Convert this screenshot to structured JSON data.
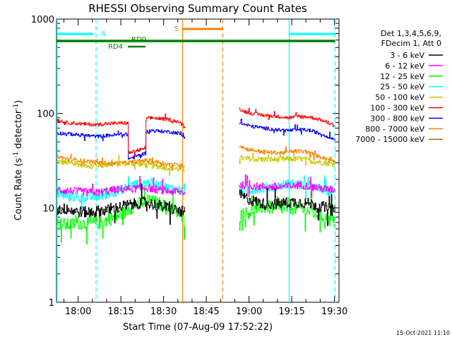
{
  "chart_data": {
    "type": "line",
    "title": "RHESSI Observing Summary Count Rates",
    "xlabel": "Start Time (07-Aug-09 17:52:22)",
    "ylabel": "Count Rate (s⁻¹ detector⁻¹)",
    "ylabel_parts": {
      "main": "Count Rate (s",
      "exp1": "-1",
      "mid": " detector",
      "exp2": "-1",
      "end": ")"
    },
    "xaxis": {
      "unit": "minutes of day",
      "xlim": [
        1072.4,
        1171.6
      ],
      "ticks": [
        {
          "v": 1080,
          "label": "18:00"
        },
        {
          "v": 1095,
          "label": "18:15"
        },
        {
          "v": 1110,
          "label": "18:30"
        },
        {
          "v": 1125,
          "label": "18:45"
        },
        {
          "v": 1140,
          "label": "19:00"
        },
        {
          "v": 1155,
          "label": "19:15"
        },
        {
          "v": 1170,
          "label": "19:30"
        }
      ]
    },
    "yaxis": {
      "scale": "log",
      "ylim": [
        1,
        1000
      ],
      "ticks": [
        {
          "v": 1,
          "label": "1"
        },
        {
          "v": 10,
          "label": "10"
        },
        {
          "v": 100,
          "label": "100"
        },
        {
          "v": 1000,
          "label": "1000"
        }
      ]
    },
    "legend_position": "top-right",
    "legend_header": [
      "Det 1,3,4,5,6,9,",
      "FDecim 1, Att 0"
    ],
    "series": [
      {
        "name": "3 - 6 keV",
        "color": "#000000",
        "noise": 0.06,
        "points": [
          [
            1072.6,
            9.5
          ],
          [
            1076,
            9.8
          ],
          [
            1079,
            9.2
          ],
          [
            1082,
            9.0
          ],
          [
            1087,
            9.3
          ],
          [
            1092,
            9.6
          ],
          [
            1096,
            10.5
          ],
          [
            1100,
            11.0
          ],
          [
            1103,
            11.5
          ],
          [
            1106,
            11.0
          ],
          [
            1110,
            10.3
          ],
          [
            1114,
            9.5
          ],
          [
            1117.5,
            9.0
          ]
        ],
        "points2": [
          [
            1136.5,
            14.0
          ],
          [
            1138,
            13.0
          ],
          [
            1141,
            12.0
          ],
          [
            1145,
            11.0
          ],
          [
            1150,
            11.0
          ],
          [
            1155,
            11.5
          ],
          [
            1158,
            11.5
          ],
          [
            1163,
            10.8
          ],
          [
            1167,
            10.0
          ],
          [
            1170.2,
            9.2
          ]
        ]
      },
      {
        "name": "6 - 12 keV",
        "color": "#ff00ff",
        "noise": 0.04,
        "points": [
          [
            1072.6,
            15.5
          ],
          [
            1077,
            15.2
          ],
          [
            1082,
            14.8
          ],
          [
            1087,
            14.5
          ],
          [
            1092,
            15.5
          ],
          [
            1096,
            15.8
          ],
          [
            1100,
            16.0
          ],
          [
            1104,
            16.3
          ],
          [
            1108,
            15.5
          ],
          [
            1112,
            15.0
          ],
          [
            1117.5,
            14.5
          ]
        ],
        "points2": [
          [
            1136.5,
            17.5
          ],
          [
            1140,
            17.0
          ],
          [
            1145,
            16.8
          ],
          [
            1150,
            16.5
          ],
          [
            1154,
            17.0
          ],
          [
            1158,
            17.5
          ],
          [
            1163,
            16.5
          ],
          [
            1167,
            15.8
          ],
          [
            1170.2,
            15.5
          ]
        ]
      },
      {
        "name": "12 - 25 keV",
        "color": "#00ff00",
        "noise": 0.07,
        "points": [
          [
            1072.6,
            6.8
          ],
          [
            1076,
            6.6
          ],
          [
            1080,
            6.9
          ],
          [
            1084,
            6.8
          ],
          [
            1088,
            7.0
          ],
          [
            1092,
            7.8
          ],
          [
            1095,
            8.5
          ],
          [
            1098,
            9.8
          ],
          [
            1101,
            11.0
          ],
          [
            1104,
            11.8
          ],
          [
            1107,
            11.5
          ],
          [
            1110,
            10.5
          ],
          [
            1114,
            9.3
          ],
          [
            1117.5,
            7.3
          ]
        ],
        "points2": [
          [
            1136.5,
            8.0
          ],
          [
            1138,
            8.5
          ],
          [
            1140,
            9.0
          ],
          [
            1143,
            10.0
          ],
          [
            1146,
            10.2
          ],
          [
            1150,
            9.8
          ],
          [
            1154,
            10.0
          ],
          [
            1158,
            9.8
          ],
          [
            1162,
            9.0
          ],
          [
            1166,
            8.0
          ],
          [
            1170.2,
            7.0
          ]
        ]
      },
      {
        "name": "25 - 50 keV",
        "color": "#00ffff",
        "noise": 0.05,
        "points": [
          [
            1072.6,
            14.0
          ],
          [
            1076,
            13.5
          ],
          [
            1080,
            12.8
          ],
          [
            1084,
            13.0
          ],
          [
            1088,
            13.5
          ],
          [
            1092,
            14.5
          ],
          [
            1095,
            15.5
          ],
          [
            1098,
            17.0
          ],
          [
            1101,
            18.0
          ],
          [
            1105,
            18.5
          ],
          [
            1109,
            17.0
          ],
          [
            1113,
            16.0
          ],
          [
            1117.5,
            15.0
          ]
        ],
        "points2": [
          [
            1136.5,
            15.0
          ],
          [
            1140,
            15.5
          ],
          [
            1144,
            16.0
          ],
          [
            1148,
            16.5
          ],
          [
            1152,
            17.5
          ],
          [
            1156,
            18.0
          ],
          [
            1160,
            17.5
          ],
          [
            1164,
            16.0
          ],
          [
            1170.2,
            14.5
          ]
        ]
      },
      {
        "name": "50 - 100 keV",
        "color": "#c8c800",
        "noise": 0.03,
        "points": [
          [
            1072.6,
            31.0
          ],
          [
            1076,
            30.0
          ],
          [
            1080,
            29.0
          ],
          [
            1084,
            28.0
          ],
          [
            1088,
            28.5
          ],
          [
            1092,
            29.0
          ],
          [
            1096,
            29.5
          ],
          [
            1100,
            29.5
          ],
          [
            1104,
            28.5
          ],
          [
            1108,
            27.5
          ],
          [
            1112,
            26.5
          ],
          [
            1117.5,
            25.5
          ]
        ],
        "points2": [
          [
            1136.5,
            34.0
          ],
          [
            1140,
            33.0
          ],
          [
            1145,
            32.5
          ],
          [
            1150,
            32.5
          ],
          [
            1155,
            33.0
          ],
          [
            1158,
            33.0
          ],
          [
            1163,
            31.0
          ],
          [
            1167,
            30.0
          ],
          [
            1170.2,
            29.0
          ]
        ]
      },
      {
        "name": "100 - 300 keV",
        "color": "#ff0000",
        "noise": 0.018,
        "points": [
          [
            1072.6,
            85.0
          ],
          [
            1076,
            80.0
          ],
          [
            1080,
            78.0
          ],
          [
            1083,
            77.0
          ],
          [
            1086,
            76.0
          ],
          [
            1088,
            77.0
          ],
          [
            1092,
            78.5
          ],
          [
            1095,
            79.0
          ],
          [
            1097.5,
            79.0
          ],
          [
            1097.6,
            38.0
          ],
          [
            1100,
            40.0
          ],
          [
            1103,
            42.0
          ],
          [
            1103.6,
            44.0
          ],
          [
            1103.7,
            88.0
          ],
          [
            1106,
            90.0
          ],
          [
            1109,
            88.0
          ],
          [
            1112,
            86.0
          ],
          [
            1115,
            82.0
          ],
          [
            1117.5,
            72.0
          ]
        ],
        "points2": [
          [
            1136.5,
            112.0
          ],
          [
            1138,
            106.0
          ],
          [
            1141,
            100.0
          ],
          [
            1145,
            96.0
          ],
          [
            1150,
            93.0
          ],
          [
            1154,
            90.0
          ],
          [
            1158,
            93.0
          ],
          [
            1161,
            92.0
          ],
          [
            1165,
            86.0
          ],
          [
            1170.2,
            74.0
          ]
        ]
      },
      {
        "name": "300 - 800 keV",
        "color": "#0000ff",
        "noise": 0.018,
        "points": [
          [
            1072.6,
            62.0
          ],
          [
            1076,
            61.0
          ],
          [
            1080,
            59.5
          ],
          [
            1084,
            58.0
          ],
          [
            1087,
            57.0
          ],
          [
            1089,
            58.0
          ],
          [
            1092,
            59.0
          ],
          [
            1095,
            60.0
          ],
          [
            1097.5,
            60.0
          ],
          [
            1097.6,
            33.0
          ],
          [
            1100,
            35.0
          ],
          [
            1103,
            37.5
          ],
          [
            1103.6,
            38.0
          ],
          [
            1103.7,
            64.0
          ],
          [
            1106,
            66.0
          ],
          [
            1109,
            65.0
          ],
          [
            1112,
            64.0
          ],
          [
            1115,
            62.0
          ],
          [
            1117.5,
            56.0
          ]
        ],
        "points2": [
          [
            1136.5,
            80.0
          ],
          [
            1138,
            77.0
          ],
          [
            1141,
            73.0
          ],
          [
            1145,
            70.0
          ],
          [
            1150,
            67.0
          ],
          [
            1154,
            66.0
          ],
          [
            1158,
            67.5
          ],
          [
            1161,
            66.5
          ],
          [
            1165,
            61.0
          ],
          [
            1170.2,
            53.0
          ]
        ]
      },
      {
        "name": "800 - 7000 keV",
        "color": "#ff8000",
        "noise": 0.02,
        "points": [
          [
            1072.6,
            35.0
          ],
          [
            1076,
            33.0
          ],
          [
            1080,
            32.0
          ],
          [
            1084,
            31.0
          ],
          [
            1088,
            30.0
          ],
          [
            1092,
            29.5
          ],
          [
            1096,
            30.0
          ],
          [
            1100,
            31.0
          ],
          [
            1104,
            32.0
          ],
          [
            1108,
            30.5
          ],
          [
            1112,
            29.0
          ],
          [
            1117.5,
            28.0
          ]
        ],
        "points2": [
          [
            1136.5,
            46.0
          ],
          [
            1139,
            42.0
          ],
          [
            1143,
            40.0
          ],
          [
            1148,
            38.5
          ],
          [
            1152,
            38.5
          ],
          [
            1156,
            40.0
          ],
          [
            1160,
            39.5
          ],
          [
            1164,
            35.5
          ],
          [
            1170.2,
            31.0
          ]
        ]
      },
      {
        "name": "7000 - 15000 keV",
        "color": "#808000",
        "noise": 0.0,
        "points": [],
        "points2": []
      }
    ],
    "bars": [
      {
        "label": "N",
        "color": "#00ffff"
      },
      {
        "label": "RD0",
        "color": "#008000"
      },
      {
        "label": "RD4",
        "color": "#008000"
      },
      {
        "label": "S",
        "color": "#ff8000"
      }
    ],
    "markers": {
      "night_start": 1072.6,
      "night_end": 1086.3,
      "night2_start": 1154.1,
      "night2_end": 1170.2,
      "saa_start": 1116.7,
      "saa_end": 1130.8
    }
  },
  "timestamp": "15-Oct-2021 11:10"
}
